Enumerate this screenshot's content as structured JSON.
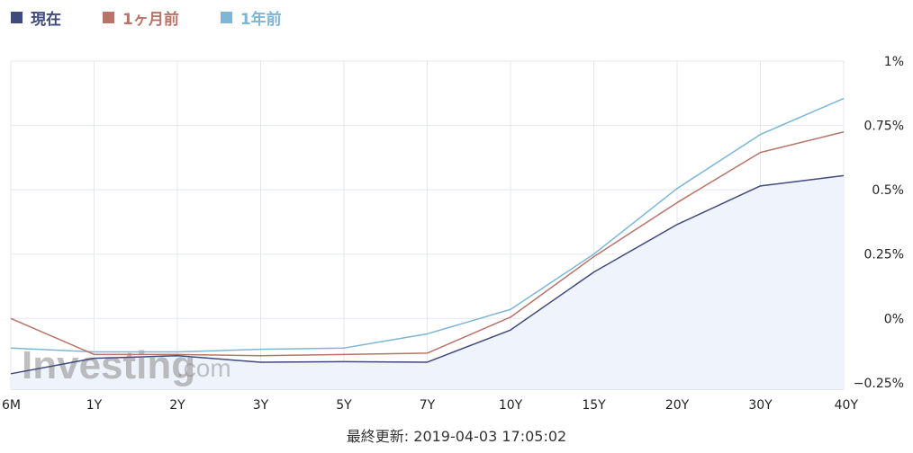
{
  "legend": {
    "items": [
      {
        "label": "現在",
        "color": "#3f4a7d"
      },
      {
        "label": "1ヶ月前",
        "color": "#b87468"
      },
      {
        "label": "1年前",
        "color": "#7db6d6"
      }
    ]
  },
  "watermark": {
    "brand": "Investing",
    "suffix": ".com"
  },
  "footer": {
    "text": "最終更新: 2019-04-03 17:05:02"
  },
  "chart_data": {
    "type": "line",
    "categories": [
      "6M",
      "1Y",
      "2Y",
      "3Y",
      "5Y",
      "7Y",
      "10Y",
      "15Y",
      "20Y",
      "30Y",
      "40Y"
    ],
    "y_ticks": [
      "1%",
      "0.75%",
      "0.5%",
      "0.25%",
      "0%",
      "−0.25%"
    ],
    "y_tick_values": [
      1,
      0.75,
      0.5,
      0.25,
      0,
      -0.25
    ],
    "ylim": [
      -0.275,
      1.0
    ],
    "grid": true,
    "legend_position": "top-left",
    "series": [
      {
        "name": "現在",
        "color": "#3f4a7d",
        "fill": "#eef3fc",
        "values": [
          -0.215,
          -0.155,
          -0.145,
          -0.17,
          -0.168,
          -0.17,
          -0.045,
          0.18,
          0.365,
          0.515,
          0.555
        ]
      },
      {
        "name": "1ヶ月前",
        "color": "#b87468",
        "values": [
          0.0,
          -0.14,
          -0.14,
          -0.145,
          -0.14,
          -0.135,
          0.005,
          0.24,
          0.45,
          0.645,
          0.725
        ]
      },
      {
        "name": "1年前",
        "color": "#7db6d6",
        "values": [
          -0.115,
          -0.13,
          -0.13,
          -0.12,
          -0.115,
          -0.06,
          0.035,
          0.25,
          0.505,
          0.715,
          0.855
        ]
      }
    ]
  }
}
